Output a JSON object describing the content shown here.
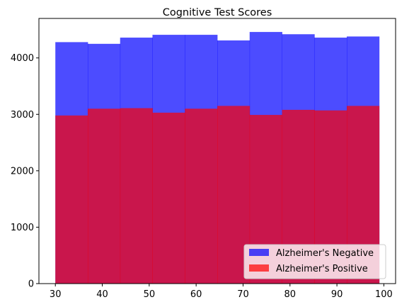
{
  "chart_data": {
    "type": "histogram",
    "title": "Cognitive Test Scores",
    "xlabel": "",
    "ylabel": "",
    "xlim": [
      26.5,
      102.5
    ],
    "ylim": [
      0,
      4700
    ],
    "xticks": [
      30,
      40,
      50,
      60,
      70,
      80,
      90,
      100
    ],
    "yticks": [
      0,
      1000,
      2000,
      3000,
      4000
    ],
    "bin_edges": [
      30,
      36.9,
      43.8,
      50.7,
      57.6,
      64.5,
      71.4,
      78.3,
      85.2,
      92.1,
      99
    ],
    "grid": false,
    "legend_position": "lower-right",
    "series": [
      {
        "name": "Alzheimer's Negative",
        "color": "#0000ff",
        "alpha": 0.7,
        "values": [
          4280,
          4250,
          4360,
          4410,
          4410,
          4310,
          4460,
          4420,
          4360,
          4380
        ]
      },
      {
        "name": "Alzheimer's Positive",
        "color": "#ff0000",
        "alpha": 0.7,
        "values": [
          2980,
          3100,
          3110,
          3030,
          3100,
          3150,
          2990,
          3080,
          3070,
          3150
        ]
      }
    ]
  }
}
